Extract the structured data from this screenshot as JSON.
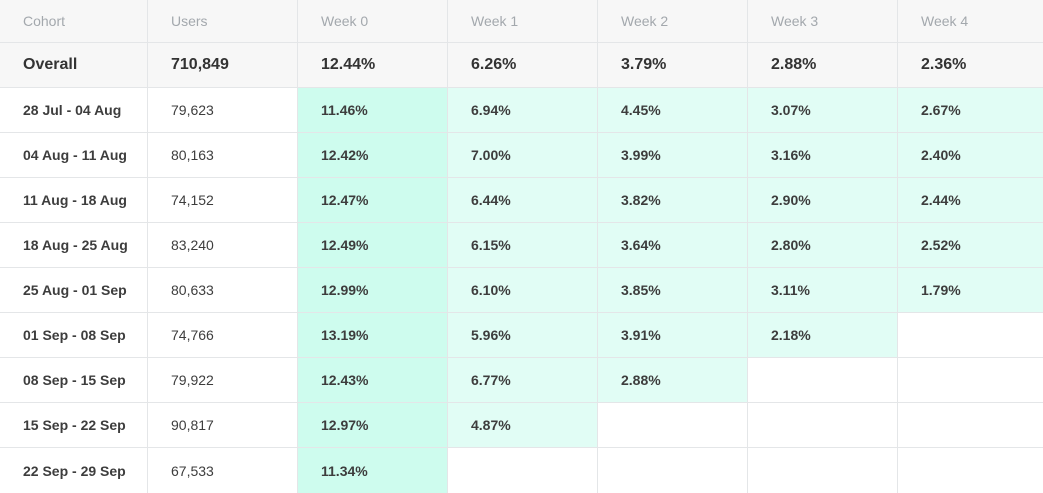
{
  "columns": [
    "Cohort",
    "Users",
    "Week 0",
    "Week 1",
    "Week 2",
    "Week 3",
    "Week 4"
  ],
  "overall": {
    "label": "Overall",
    "users": "710,849",
    "weeks": [
      "12.44%",
      "6.26%",
      "3.79%",
      "2.88%",
      "2.36%"
    ]
  },
  "cohorts": [
    {
      "label": "28 Jul - 04 Aug",
      "users": "79,623",
      "weeks": [
        "11.46%",
        "6.94%",
        "4.45%",
        "3.07%",
        "2.67%"
      ]
    },
    {
      "label": "04 Aug - 11 Aug",
      "users": "80,163",
      "weeks": [
        "12.42%",
        "7.00%",
        "3.99%",
        "3.16%",
        "2.40%"
      ]
    },
    {
      "label": "11 Aug - 18 Aug",
      "users": "74,152",
      "weeks": [
        "12.47%",
        "6.44%",
        "3.82%",
        "2.90%",
        "2.44%"
      ]
    },
    {
      "label": "18 Aug - 25 Aug",
      "users": "83,240",
      "weeks": [
        "12.49%",
        "6.15%",
        "3.64%",
        "2.80%",
        "2.52%"
      ]
    },
    {
      "label": "25 Aug - 01 Sep",
      "users": "80,633",
      "weeks": [
        "12.99%",
        "6.10%",
        "3.85%",
        "3.11%",
        "1.79%"
      ]
    },
    {
      "label": "01 Sep - 08 Sep",
      "users": "74,766",
      "weeks": [
        "13.19%",
        "5.96%",
        "3.91%",
        "2.18%",
        ""
      ]
    },
    {
      "label": "08 Sep - 15 Sep",
      "users": "79,922",
      "weeks": [
        "12.43%",
        "6.77%",
        "2.88%",
        "",
        ""
      ]
    },
    {
      "label": "15 Sep - 22 Sep",
      "users": "90,817",
      "weeks": [
        "12.97%",
        "4.87%",
        "",
        "",
        ""
      ]
    },
    {
      "label": "22 Sep - 29 Sep",
      "users": "67,533",
      "weeks": [
        "11.34%",
        "",
        "",
        "",
        ""
      ]
    }
  ],
  "colors": {
    "heat_strong": "#cefcee",
    "heat_mid": "#d9fdf2",
    "heat_light": "#e1fdf5",
    "header_bg": "#f7f7f7",
    "border": "#e4e6e8"
  }
}
